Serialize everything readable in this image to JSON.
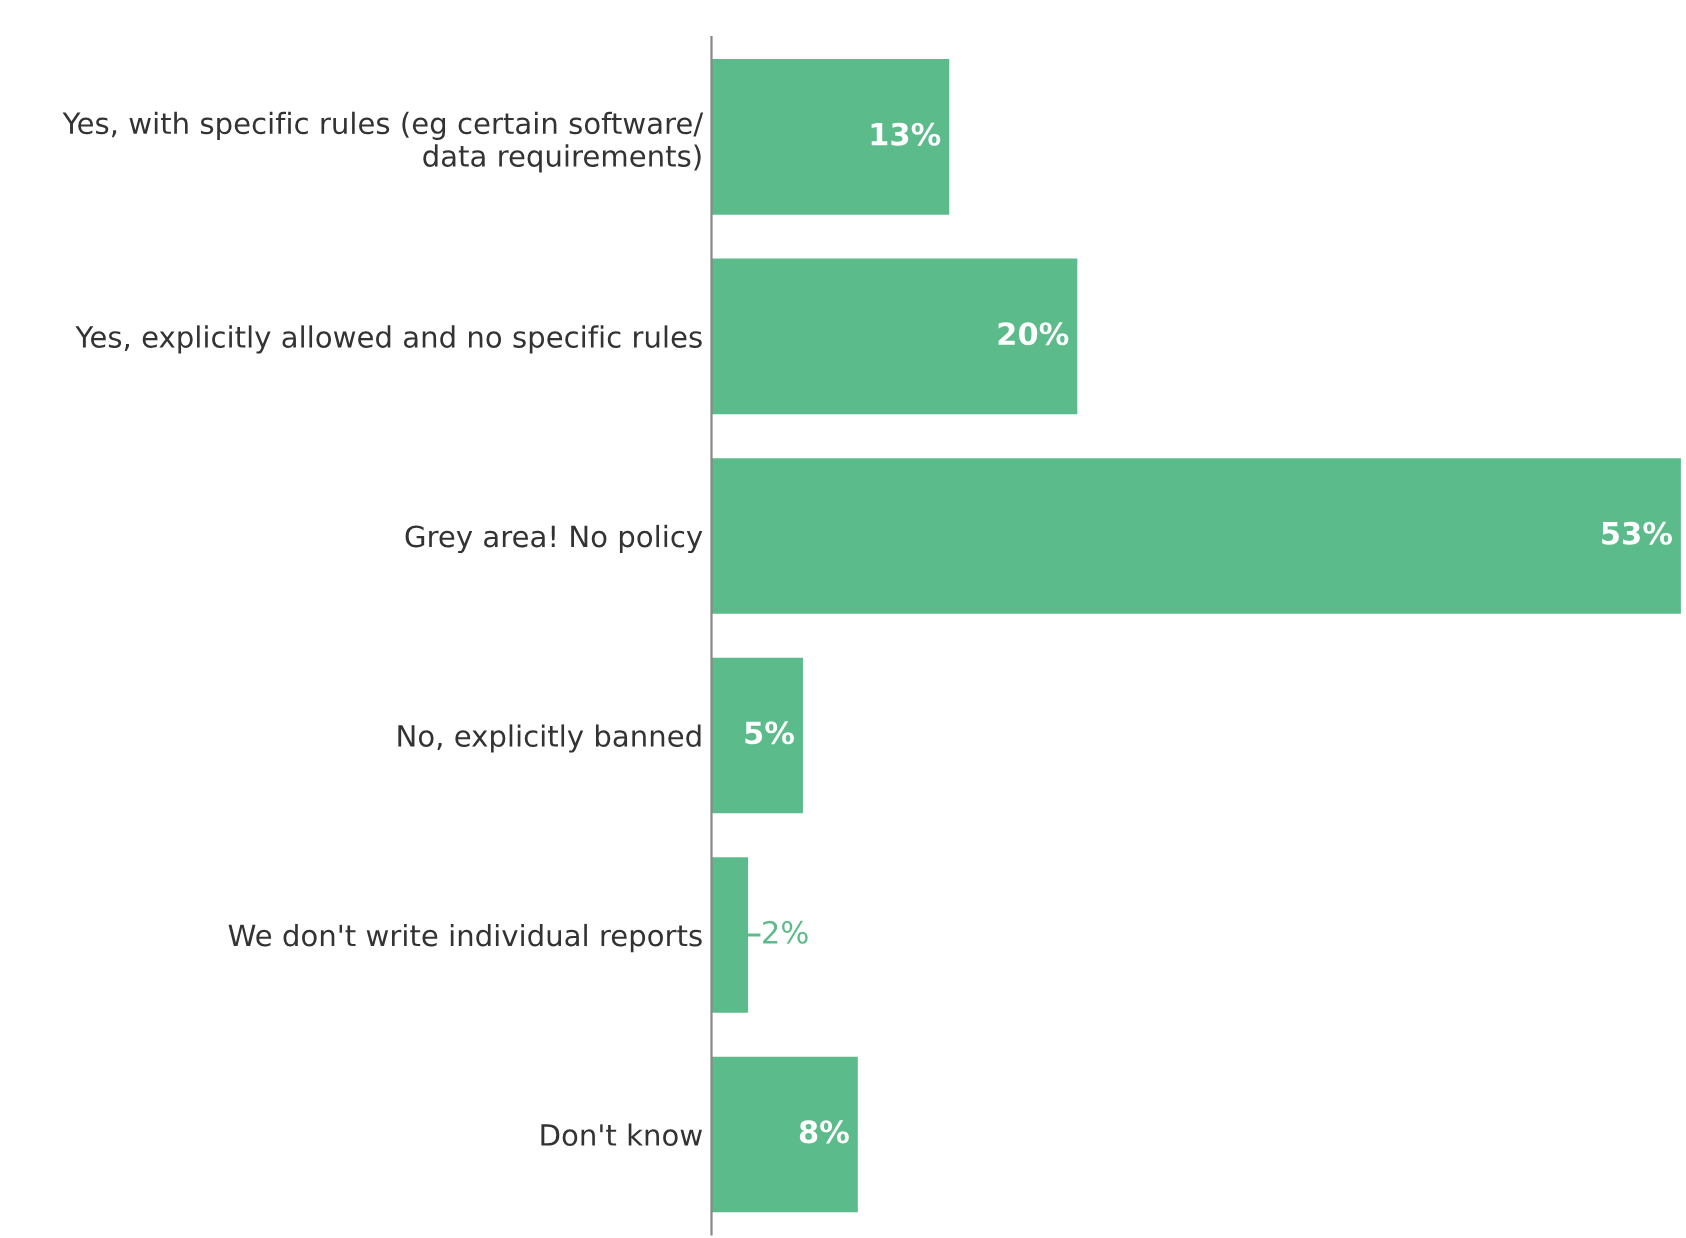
{
  "chart_data": {
    "type": "bar",
    "orientation": "horizontal",
    "categories": [
      "Yes, with specific rules (eg certain software/\ndata requirements)",
      "Yes, explicitly allowed and no specific rules",
      "Grey area! No policy",
      "No, explicitly banned",
      "We don't write individual reports",
      "Don't know"
    ],
    "values": [
      13,
      20,
      53,
      5,
      2,
      8
    ],
    "value_labels": [
      "13%",
      "20%",
      "53%",
      "5%",
      "2%",
      "8%"
    ],
    "color": "#5cbb8a",
    "grid": false,
    "legend": false
  }
}
